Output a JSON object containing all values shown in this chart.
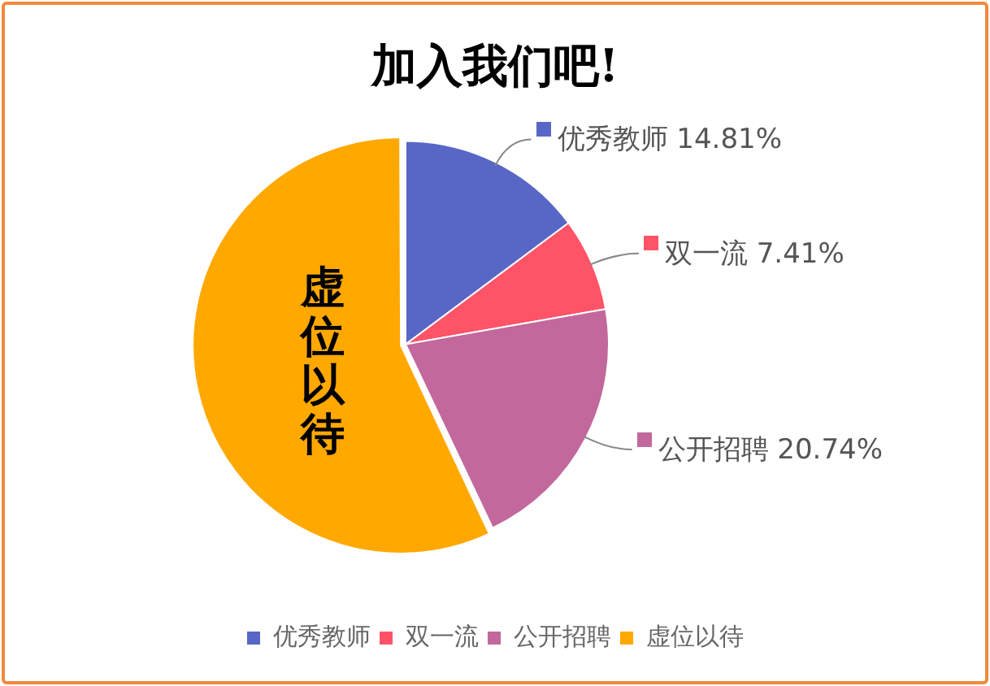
{
  "chart_data": {
    "type": "pie",
    "title": "加入我们吧!",
    "categories": [
      "优秀教师",
      "双一流",
      "公开招聘",
      "虚位以待"
    ],
    "values": [
      14.81,
      7.41,
      20.74,
      57.04
    ],
    "value_labels": [
      "14.81%",
      "7.41%",
      "20.74%",
      null
    ],
    "colors": [
      "#5866c6",
      "#ff5468",
      "#c2689c",
      "#ffa800"
    ],
    "legend": "bottom"
  }
}
